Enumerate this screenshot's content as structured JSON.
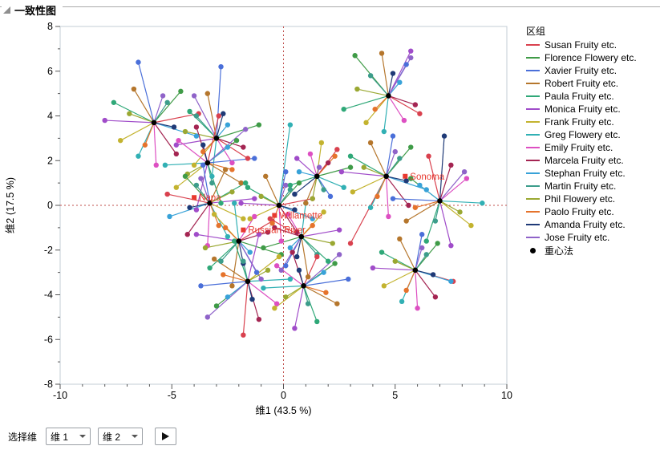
{
  "window": {
    "title": "一致性图"
  },
  "legend": {
    "title": "区组",
    "entries": [
      {
        "label": "Susan Fruity etc.",
        "color": "#d9414e"
      },
      {
        "label": "Florence Flowery etc.",
        "color": "#3f9b47"
      },
      {
        "label": "Xavier Fruity etc.",
        "color": "#4a6fd9"
      },
      {
        "label": "Robert Fruity etc.",
        "color": "#b5762c"
      },
      {
        "label": "Paula Fruity etc.",
        "color": "#2fa878"
      },
      {
        "label": "Monica Fruity etc.",
        "color": "#a04cc9"
      },
      {
        "label": "Frank Fruity etc.",
        "color": "#c3b32f"
      },
      {
        "label": "Greg Flowery etc.",
        "color": "#31b0b4"
      },
      {
        "label": "Emily Fruity etc.",
        "color": "#dd4fc2"
      },
      {
        "label": "Marcela Fruity etc.",
        "color": "#a42552"
      },
      {
        "label": "Stephan Fruity etc.",
        "color": "#38a2d8"
      },
      {
        "label": "Martin Fruity etc.",
        "color": "#3c9d8b"
      },
      {
        "label": "Phil Flowery etc.",
        "color": "#9aa832"
      },
      {
        "label": "Paolo Fruity etc.",
        "color": "#e5732c"
      },
      {
        "label": "Amanda Fruity etc.",
        "color": "#1f3a77"
      },
      {
        "label": "Jose Fruity etc.",
        "color": "#8f63c9"
      }
    ],
    "centroid": {
      "label": "重心法",
      "color": "#000000"
    }
  },
  "controls": {
    "label": "选择维",
    "dim1": "维 1",
    "dim2": "维 2"
  },
  "chart_data": {
    "type": "scatter",
    "title": "一致性图",
    "xlabel": "维1  (43.5 %)",
    "ylabel": "维2  (17.5 %)",
    "xlim": [
      -10,
      10
    ],
    "ylim": [
      -8,
      8
    ],
    "x_major_ticks": [
      -10,
      -5,
      0,
      5,
      10
    ],
    "y_major_ticks": [
      -8,
      -6,
      -4,
      -2,
      0,
      2,
      4,
      6,
      8
    ],
    "minor_tick_step": 1,
    "grid": false,
    "legend_position": "right",
    "reference_lines": {
      "x": 0,
      "y": 0,
      "style": "dashed",
      "color": "#c0504d"
    },
    "product_color": "#e8392f",
    "products": [
      {
        "name": "Napa",
        "x": -4.0,
        "y": 0.35
      },
      {
        "name": "Sonoma",
        "x": 5.45,
        "y": 1.3
      },
      {
        "name": "Willamette",
        "x": -0.4,
        "y": -0.45
      },
      {
        "name": "Russian River",
        "x": -1.8,
        "y": -1.1
      }
    ],
    "raters": [
      "Susan Fruity etc.",
      "Florence Flowery etc.",
      "Xavier Fruity etc.",
      "Robert Fruity etc.",
      "Paula Fruity etc.",
      "Monica Fruity etc.",
      "Frank Fruity etc.",
      "Greg Flowery etc.",
      "Emily Fruity etc.",
      "Marcela Fruity etc.",
      "Stephan Fruity etc.",
      "Martin Fruity etc.",
      "Phil Flowery etc.",
      "Paolo Fruity etc.",
      "Amanda Fruity etc.",
      "Jose Fruity etc."
    ],
    "clusters": [
      {
        "center": [
          -5.8,
          3.7
        ],
        "offsets": [
          [
            2.0,
            0.4
          ],
          [
            1.2,
            1.4
          ],
          [
            -0.7,
            2.7
          ],
          [
            -0.9,
            1.5
          ],
          [
            -1.8,
            0.9
          ],
          [
            -2.2,
            0.1
          ],
          [
            -1.5,
            -0.8
          ],
          [
            -0.7,
            -1.5
          ],
          [
            0.1,
            -1.9
          ],
          [
            1.0,
            -1.4
          ],
          [
            1.9,
            -0.6
          ],
          [
            0.6,
            0.9
          ],
          [
            -1.1,
            0.4
          ],
          [
            -0.4,
            -1.0
          ],
          [
            0.9,
            -0.2
          ],
          [
            0.4,
            1.2
          ]
        ]
      },
      {
        "center": [
          -3.0,
          3.0
        ],
        "offsets": [
          [
            1.4,
            -0.9
          ],
          [
            1.9,
            0.6
          ],
          [
            0.2,
            3.2
          ],
          [
            -0.4,
            2.0
          ],
          [
            -1.2,
            1.2
          ],
          [
            -1.8,
            -0.3
          ],
          [
            -1.0,
            -1.2
          ],
          [
            -0.2,
            -1.7
          ],
          [
            0.7,
            -1.1
          ],
          [
            1.2,
            -0.4
          ],
          [
            0.5,
            0.6
          ],
          [
            -0.9,
            1.0
          ],
          [
            -1.4,
            0.3
          ],
          [
            -0.6,
            -0.6
          ],
          [
            0.3,
            1.1
          ],
          [
            -1.0,
            1.9
          ]
        ]
      },
      {
        "center": [
          -3.4,
          1.9
        ],
        "offsets": [
          [
            0.5,
            2.1
          ],
          [
            1.3,
            1.0
          ],
          [
            2.1,
            0.2
          ],
          [
            1.5,
            -0.9
          ],
          [
            0.6,
            -1.8
          ],
          [
            -0.5,
            -2.1
          ],
          [
            -1.4,
            -1.1
          ],
          [
            -1.9,
            -0.1
          ],
          [
            -1.3,
            1.0
          ],
          [
            -0.5,
            1.6
          ],
          [
            0.9,
            0.7
          ],
          [
            0.2,
            -0.9
          ],
          [
            -0.9,
            -0.5
          ],
          [
            1.1,
            -0.3
          ],
          [
            -0.2,
            0.8
          ],
          [
            1.7,
            1.5
          ]
        ]
      },
      {
        "center": [
          -3.3,
          0.1
        ],
        "offsets": [
          [
            -1.9,
            0.4
          ],
          [
            -1.1,
            1.2
          ],
          [
            -0.3,
            1.7
          ],
          [
            0.7,
            1.5
          ],
          [
            1.6,
            0.9
          ],
          [
            2.0,
            0.2
          ],
          [
            1.5,
            -0.7
          ],
          [
            0.8,
            -1.5
          ],
          [
            -0.1,
            -1.9
          ],
          [
            -1.0,
            -1.4
          ],
          [
            -1.8,
            -0.6
          ],
          [
            -0.6,
            0.8
          ],
          [
            1.0,
            0.5
          ],
          [
            0.4,
            -1.0
          ],
          [
            -0.9,
            -0.2
          ],
          [
            -0.4,
            1.1
          ]
        ]
      },
      {
        "center": [
          -2.0,
          -1.6
        ],
        "offsets": [
          [
            1.5,
            0.9
          ],
          [
            1.9,
            -0.6
          ],
          [
            0.8,
            -1.4
          ],
          [
            -0.3,
            -2.0
          ],
          [
            -1.3,
            -1.2
          ],
          [
            -1.9,
            0.3
          ],
          [
            -1.1,
            1.2
          ],
          [
            -0.2,
            1.7
          ],
          [
            0.7,
            1.1
          ],
          [
            1.3,
            0.4
          ],
          [
            0.5,
            -0.5
          ],
          [
            -0.8,
            -0.9
          ],
          [
            -1.5,
            -0.3
          ],
          [
            -0.6,
            0.6
          ],
          [
            0.2,
            -1.0
          ],
          [
            1.0,
            -1.7
          ]
        ]
      },
      {
        "center": [
          -1.6,
          -3.4
        ],
        "offsets": [
          [
            -0.2,
            -2.4
          ],
          [
            -1.4,
            -1.1
          ],
          [
            -2.1,
            -0.2
          ],
          [
            -1.5,
            1.0
          ],
          [
            -0.6,
            1.8
          ],
          [
            0.5,
            2.1
          ],
          [
            1.4,
            1.1
          ],
          [
            1.9,
            0.1
          ],
          [
            1.3,
            -1.0
          ],
          [
            0.5,
            -1.7
          ],
          [
            -0.9,
            -0.7
          ],
          [
            -0.2,
            0.9
          ],
          [
            0.9,
            0.5
          ],
          [
            -1.1,
            0.3
          ],
          [
            0.2,
            -0.8
          ],
          [
            -1.8,
            -1.6
          ]
        ]
      },
      {
        "center": [
          -0.2,
          0.0
        ],
        "offsets": [
          [
            1.5,
            0.3
          ],
          [
            0.9,
            1.0
          ],
          [
            0.3,
            1.5
          ],
          [
            -0.6,
            1.3
          ],
          [
            -1.4,
            0.8
          ],
          [
            -1.7,
            0.1
          ],
          [
            -1.3,
            -0.6
          ],
          [
            0.5,
            3.6
          ],
          [
            0.1,
            -1.6
          ],
          [
            0.8,
            -1.2
          ],
          [
            1.5,
            -0.6
          ],
          [
            0.5,
            0.7
          ],
          [
            -0.8,
            0.4
          ],
          [
            -0.3,
            -0.8
          ],
          [
            0.7,
            -0.2
          ],
          [
            0.3,
            0.9
          ]
        ]
      },
      {
        "center": [
          0.8,
          -1.4
        ],
        "offsets": [
          [
            -1.4,
            0.8
          ],
          [
            -1.7,
            -0.5
          ],
          [
            -0.7,
            -1.3
          ],
          [
            0.3,
            -1.8
          ],
          [
            1.2,
            -1.1
          ],
          [
            1.7,
            0.3
          ],
          [
            1.0,
            1.1
          ],
          [
            0.2,
            1.5
          ],
          [
            -0.6,
            1.0
          ],
          [
            -1.2,
            0.4
          ],
          [
            -0.5,
            -0.5
          ],
          [
            0.7,
            -0.8
          ],
          [
            1.4,
            -0.3
          ],
          [
            0.5,
            0.5
          ],
          [
            -0.2,
            -0.9
          ],
          [
            -0.9,
            -1.5
          ]
        ]
      },
      {
        "center": [
          0.9,
          -3.6
        ],
        "offsets": [
          [
            0.6,
            1.3
          ],
          [
            1.4,
            1.0
          ],
          [
            2.0,
            0.3
          ],
          [
            1.5,
            -0.8
          ],
          [
            0.6,
            -1.6
          ],
          [
            -0.4,
            -1.9
          ],
          [
            -1.3,
            -1.0
          ],
          [
            -1.8,
            -0.1
          ],
          [
            -1.2,
            0.9
          ],
          [
            -0.5,
            1.5
          ],
          [
            0.9,
            0.6
          ],
          [
            0.2,
            -0.8
          ],
          [
            -0.8,
            -0.5
          ],
          [
            1.0,
            -0.3
          ],
          [
            -0.2,
            0.7
          ],
          [
            1.6,
            1.4
          ]
        ]
      },
      {
        "center": [
          4.6,
          1.3
        ],
        "offsets": [
          [
            -1.6,
            -3.0
          ],
          [
            1.1,
            1.3
          ],
          [
            0.3,
            1.8
          ],
          [
            -0.7,
            1.5
          ],
          [
            -1.6,
            0.9
          ],
          [
            -2.0,
            0.2
          ],
          [
            -1.5,
            -0.7
          ],
          [
            -0.7,
            -1.4
          ],
          [
            0.1,
            -1.8
          ],
          [
            1.0,
            -1.3
          ],
          [
            1.8,
            -0.6
          ],
          [
            0.6,
            0.8
          ],
          [
            -1.0,
            0.4
          ],
          [
            -0.4,
            -0.9
          ],
          [
            0.9,
            -0.2
          ],
          [
            0.4,
            1.1
          ]
        ]
      },
      {
        "center": [
          4.7,
          4.9
        ],
        "offsets": [
          [
            1.4,
            -0.8
          ],
          [
            -1.5,
            1.8
          ],
          [
            0.8,
            1.4
          ],
          [
            -0.3,
            1.9
          ],
          [
            -2.0,
            -0.6
          ],
          [
            1.0,
            2.0
          ],
          [
            -1.0,
            -1.2
          ],
          [
            -0.2,
            -1.6
          ],
          [
            0.7,
            -1.1
          ],
          [
            1.2,
            -0.4
          ],
          [
            0.5,
            0.6
          ],
          [
            -0.8,
            0.9
          ],
          [
            -1.4,
            0.3
          ],
          [
            -0.6,
            -0.6
          ],
          [
            0.2,
            1.0
          ],
          [
            1.0,
            1.7
          ]
        ]
      },
      {
        "center": [
          7.0,
          0.2
        ],
        "offsets": [
          [
            -0.5,
            2.0
          ],
          [
            -1.3,
            1.0
          ],
          [
            -2.1,
            0.1
          ],
          [
            -1.5,
            -0.9
          ],
          [
            -0.6,
            -1.8
          ],
          [
            0.5,
            -2.0
          ],
          [
            1.4,
            -1.1
          ],
          [
            1.9,
            -0.1
          ],
          [
            1.2,
            1.0
          ],
          [
            0.5,
            1.6
          ],
          [
            -0.9,
            0.7
          ],
          [
            -0.2,
            -0.9
          ],
          [
            0.9,
            -0.5
          ],
          [
            -1.1,
            -0.3
          ],
          [
            0.2,
            2.9
          ],
          [
            1.1,
            1.3
          ]
        ]
      },
      {
        "center": [
          5.9,
          -2.9
        ],
        "offsets": [
          [
            1.7,
            -0.5
          ],
          [
            1.0,
            1.2
          ],
          [
            0.3,
            1.6
          ],
          [
            -0.7,
            1.4
          ],
          [
            -1.5,
            0.8
          ],
          [
            -1.9,
            0.1
          ],
          [
            -1.4,
            -0.7
          ],
          [
            -0.6,
            -1.4
          ],
          [
            0.1,
            -1.7
          ],
          [
            0.9,
            -1.2
          ],
          [
            1.6,
            -0.5
          ],
          [
            0.5,
            0.7
          ],
          [
            -0.9,
            0.4
          ],
          [
            -0.4,
            -0.9
          ],
          [
            0.8,
            -0.2
          ],
          [
            0.3,
            1.0
          ]
        ]
      },
      {
        "center": [
          1.5,
          1.3
        ],
        "offsets": [
          [
            0.9,
            1.2
          ],
          [
            1.5,
            0.4
          ],
          [
            0.6,
            -0.9
          ],
          [
            -0.5,
            -1.2
          ],
          [
            -1.2,
            -0.4
          ],
          [
            -0.9,
            0.8
          ],
          [
            0.2,
            1.5
          ],
          [
            1.2,
            -0.5
          ],
          [
            -0.3,
            1.0
          ],
          [
            0.5,
            0.6
          ],
          [
            -0.8,
            0.2
          ],
          [
            0.3,
            -0.6
          ],
          [
            -0.2,
            -1.0
          ],
          [
            0.8,
            0.9
          ],
          [
            -1.0,
            -0.8
          ],
          [
            0.1,
            0.4
          ]
        ]
      }
    ]
  }
}
